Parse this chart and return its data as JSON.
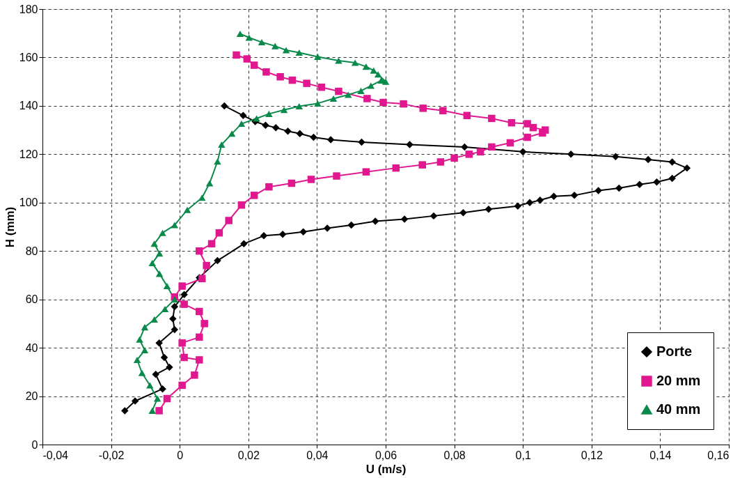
{
  "chart_data": {
    "type": "line",
    "xlabel": "U (m/s)",
    "ylabel": "H (mm)",
    "xlim": [
      -0.04,
      0.16
    ],
    "ylim": [
      0,
      180
    ],
    "xticks": [
      {
        "value": -0.04,
        "label": "-0,04"
      },
      {
        "value": -0.02,
        "label": "-0,02"
      },
      0,
      {
        "value": 0.02,
        "label": "0,02"
      },
      {
        "value": 0.04,
        "label": "0,04"
      },
      {
        "value": 0.06,
        "label": "0,06"
      },
      {
        "value": 0.08,
        "label": "0,08"
      },
      {
        "value": 0.1,
        "label": "0,1"
      },
      {
        "value": 0.12,
        "label": "0,12"
      },
      {
        "value": 0.14,
        "label": "0,14"
      },
      {
        "value": 0.16,
        "label": "0,16"
      }
    ],
    "yticks": [
      0,
      20,
      40,
      60,
      80,
      100,
      120,
      140,
      160,
      180
    ],
    "grid": true,
    "legend": "bottom right",
    "series": [
      {
        "name": "Porte",
        "color": "#000000",
        "marker": "diamond",
        "x": [
          -0.016,
          -0.013,
          -0.005,
          -0.007,
          -0.003,
          -0.0045,
          -0.006,
          -0.0015,
          -0.002,
          -0.0015,
          0.0013,
          0.0057,
          0.011,
          0.0187,
          0.0245,
          0.03,
          0.036,
          0.043,
          0.05,
          0.057,
          0.0655,
          0.074,
          0.0826,
          0.09,
          0.0985,
          0.102,
          0.105,
          0.109,
          0.115,
          0.122,
          0.128,
          0.134,
          0.139,
          0.1435,
          0.1478,
          0.1435,
          0.1365,
          0.127,
          0.114,
          0.1,
          0.083,
          0.067,
          0.053,
          0.044,
          0.039,
          0.035,
          0.0315,
          0.028,
          0.025,
          0.022,
          0.0185,
          0.013
        ],
        "values": [
          14,
          18,
          23,
          29,
          32,
          36,
          42,
          47.5,
          52,
          57,
          62,
          69,
          76,
          83,
          86.3,
          86.9,
          87.9,
          89.4,
          90.7,
          92.3,
          93.2,
          94.5,
          95.8,
          97.3,
          98.6,
          100,
          101,
          102.6,
          103,
          105,
          106,
          107.5,
          108.5,
          110,
          114.3,
          116.8,
          117.8,
          119,
          120,
          121,
          123,
          124,
          125,
          126,
          127,
          128.5,
          129.5,
          131,
          132,
          133.5,
          136,
          140
        ]
      },
      {
        "name": "20 mm",
        "color": "#e0178f",
        "marker": "square",
        "x": [
          -0.006,
          -0.0037,
          0.0007,
          0.0043,
          0.0057,
          0.0013,
          0.0007,
          0.0057,
          0.0072,
          0.0057,
          0.0013,
          -0.0015,
          0.0007,
          0.0065,
          0.0078,
          0.0057,
          0.0093,
          0.0115,
          0.0143,
          0.018,
          0.0217,
          0.026,
          0.0326,
          0.0383,
          0.0457,
          0.0543,
          0.063,
          0.0707,
          0.076,
          0.08,
          0.0843,
          0.0876,
          0.0909,
          0.0963,
          0.1013,
          0.1057,
          0.1065,
          0.103,
          0.1013,
          0.0967,
          0.0909,
          0.0837,
          0.0767,
          0.0709,
          0.0652,
          0.0593,
          0.0546,
          0.0463,
          0.0413,
          0.037,
          0.0328,
          0.0293,
          0.0252,
          0.0217,
          0.0196,
          0.0165
        ],
        "values": [
          14,
          19,
          24.5,
          28.7,
          35,
          36,
          42,
          44.4,
          50,
          55,
          58,
          61,
          65.5,
          68.6,
          74,
          80,
          83,
          87.5,
          92.6,
          99,
          103,
          106.5,
          108,
          109.6,
          111,
          112.7,
          114.3,
          115.6,
          116.8,
          118.4,
          120,
          121,
          123,
          124.7,
          127,
          128.8,
          130,
          131,
          132.6,
          133,
          134.8,
          136,
          138,
          139,
          140.8,
          141.4,
          143,
          146,
          147.7,
          149.3,
          150.6,
          152,
          154,
          156.8,
          159.4,
          161
        ]
      },
      {
        "name": "40 mm",
        "color": "#0a8a4a",
        "marker": "triangle",
        "x": [
          -0.008,
          -0.0065,
          -0.0087,
          -0.011,
          -0.0124,
          -0.0102,
          -0.0117,
          -0.0102,
          -0.0074,
          -0.0043,
          -0.0015,
          -0.0037,
          -0.0059,
          -0.008,
          -0.0059,
          -0.0074,
          -0.005,
          -0.0015,
          0.0022,
          0.0065,
          0.0087,
          0.011,
          0.0122,
          0.0152,
          0.018,
          0.0224,
          0.026,
          0.0304,
          0.0348,
          0.0402,
          0.0448,
          0.0491,
          0.0528,
          0.0557,
          0.0587,
          0.06,
          0.0578,
          0.0565,
          0.0543,
          0.0511,
          0.0463,
          0.0402,
          0.0348,
          0.031,
          0.0278,
          0.0239,
          0.0202,
          0.0176
        ],
        "values": [
          14,
          19,
          24.5,
          29.6,
          35,
          39,
          43.4,
          48.5,
          51.7,
          56,
          60,
          65.5,
          70.6,
          75,
          79,
          83,
          87.5,
          90.7,
          97,
          102,
          108,
          117,
          124,
          128.5,
          132.6,
          134.8,
          136.7,
          138.3,
          139.8,
          141,
          143,
          144.6,
          146.2,
          148.3,
          150.5,
          150,
          153,
          154.6,
          156.2,
          157.8,
          158.7,
          160.3,
          162,
          163,
          164.7,
          166.3,
          168.2,
          169.8
        ]
      }
    ]
  }
}
